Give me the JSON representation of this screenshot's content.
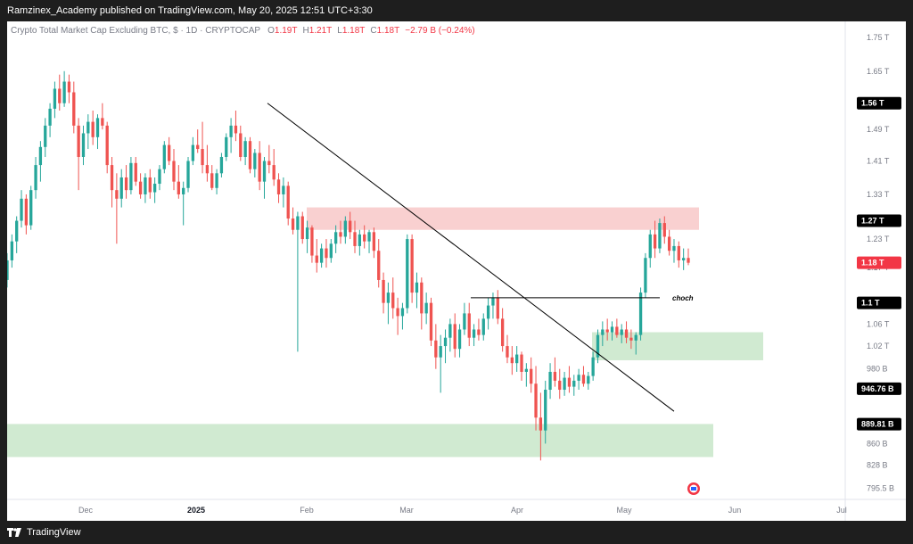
{
  "header": {
    "attribution": "Ramzinex_Academy published on TradingView.com, May 20, 2025 12:51 UTC+3:30"
  },
  "footer": {
    "brand": "TradingView"
  },
  "legend": {
    "symbol": "Crypto Total Market Cap Excluding BTC, $ · 1D · CRYPTOCAP",
    "open_label": "O",
    "open": "1.19T",
    "high_label": "H",
    "high": "1.21T",
    "low_label": "L",
    "low": "1.18T",
    "close_label": "C",
    "close": "1.18T",
    "change": "−2.79 B (−0.24%)"
  },
  "annotations": {
    "choch": "choch"
  },
  "colors": {
    "up": "#26a69a",
    "down": "#ef5350",
    "resistance_zone": "#f8c8c8",
    "support_zone": "#c8e6c9",
    "trendline": "#000000",
    "axis_text": "#787b86",
    "badge_dark": "#000000",
    "badge_red": "#f23645"
  },
  "chart_data": {
    "type": "candlestick",
    "title": "Crypto Total Market Cap Excluding BTC, $ · 1D · CRYPTOCAP",
    "x_ticks": [
      "Dec",
      "2025",
      "Feb",
      "Mar",
      "Apr",
      "May",
      "Jun",
      "Jul"
    ],
    "x_tick_dates": [
      "2024-12-01",
      "2025-01-01",
      "2025-02-01",
      "2025-03-01",
      "2025-04-01",
      "2025-05-01",
      "2025-06-01",
      "2025-07-01"
    ],
    "y_ticks": [
      "1.75 T",
      "1.65 T",
      "1.49 T",
      "1.41 T",
      "1.33 T",
      "1.23 T",
      "1.17 T",
      "1.06 T",
      "1.02 T",
      "980 B",
      "860 B",
      "828 B",
      "795.5 B"
    ],
    "y_tick_values": [
      1750,
      1650,
      1490,
      1410,
      1330,
      1230,
      1170,
      1060,
      1020,
      980,
      860,
      828,
      795.5
    ],
    "y_unit": "B",
    "y_scale": "log",
    "ylim": [
      780,
      1800
    ],
    "price_badges": [
      {
        "label": "1.56 T",
        "value": 1560,
        "style": "dark"
      },
      {
        "label": "1.27 T",
        "value": 1270,
        "style": "dark"
      },
      {
        "label": "1.18 T",
        "value": 1180,
        "style": "red"
      },
      {
        "label": "1.1 T",
        "value": 1100,
        "style": "dark"
      },
      {
        "label": "946.76 B",
        "value": 946.76,
        "style": "dark"
      },
      {
        "label": "889.81 B",
        "value": 889.81,
        "style": "dark"
      }
    ],
    "zones": [
      {
        "kind": "resistance",
        "from": "2025-02-01",
        "to": "2025-05-22",
        "low": 1250,
        "high": 1300
      },
      {
        "kind": "support",
        "from": "2025-04-22",
        "to": "2025-06-09",
        "low": 995,
        "high": 1045
      },
      {
        "kind": "support",
        "from": "2024-11-09",
        "to": "2025-05-26",
        "low": 840,
        "high": 890
      }
    ],
    "trendline": {
      "from_date": "2025-01-21",
      "from_value": 1560,
      "to_date": "2025-05-15",
      "to_value": 910
    },
    "choch_line": {
      "from_date": "2025-03-19",
      "to_date": "2025-05-11",
      "value": 1110,
      "label": "choch"
    },
    "candles": [
      {
        "o": 1145,
        "h": 1200,
        "l": 1130,
        "c": 1185
      },
      {
        "o": 1185,
        "h": 1240,
        "l": 1170,
        "c": 1225
      },
      {
        "o": 1225,
        "h": 1280,
        "l": 1200,
        "c": 1270
      },
      {
        "o": 1270,
        "h": 1340,
        "l": 1255,
        "c": 1320
      },
      {
        "o": 1320,
        "h": 1330,
        "l": 1240,
        "c": 1260
      },
      {
        "o": 1260,
        "h": 1350,
        "l": 1250,
        "c": 1340
      },
      {
        "o": 1340,
        "h": 1420,
        "l": 1320,
        "c": 1400
      },
      {
        "o": 1400,
        "h": 1460,
        "l": 1360,
        "c": 1445
      },
      {
        "o": 1445,
        "h": 1520,
        "l": 1420,
        "c": 1500
      },
      {
        "o": 1500,
        "h": 1560,
        "l": 1470,
        "c": 1545
      },
      {
        "o": 1545,
        "h": 1620,
        "l": 1520,
        "c": 1600
      },
      {
        "o": 1600,
        "h": 1640,
        "l": 1540,
        "c": 1560
      },
      {
        "o": 1560,
        "h": 1650,
        "l": 1550,
        "c": 1620
      },
      {
        "o": 1620,
        "h": 1640,
        "l": 1560,
        "c": 1590
      },
      {
        "o": 1590,
        "h": 1620,
        "l": 1480,
        "c": 1500
      },
      {
        "o": 1500,
        "h": 1520,
        "l": 1340,
        "c": 1420
      },
      {
        "o": 1420,
        "h": 1500,
        "l": 1400,
        "c": 1480
      },
      {
        "o": 1480,
        "h": 1530,
        "l": 1440,
        "c": 1510
      },
      {
        "o": 1510,
        "h": 1540,
        "l": 1450,
        "c": 1470
      },
      {
        "o": 1470,
        "h": 1530,
        "l": 1440,
        "c": 1520
      },
      {
        "o": 1520,
        "h": 1560,
        "l": 1490,
        "c": 1500
      },
      {
        "o": 1500,
        "h": 1510,
        "l": 1380,
        "c": 1400
      },
      {
        "o": 1400,
        "h": 1420,
        "l": 1300,
        "c": 1340
      },
      {
        "o": 1340,
        "h": 1380,
        "l": 1220,
        "c": 1320
      },
      {
        "o": 1320,
        "h": 1390,
        "l": 1300,
        "c": 1370
      },
      {
        "o": 1370,
        "h": 1400,
        "l": 1320,
        "c": 1340
      },
      {
        "o": 1340,
        "h": 1420,
        "l": 1330,
        "c": 1405
      },
      {
        "o": 1405,
        "h": 1420,
        "l": 1350,
        "c": 1360
      },
      {
        "o": 1360,
        "h": 1380,
        "l": 1320,
        "c": 1330
      },
      {
        "o": 1330,
        "h": 1380,
        "l": 1310,
        "c": 1370
      },
      {
        "o": 1370,
        "h": 1390,
        "l": 1320,
        "c": 1335
      },
      {
        "o": 1335,
        "h": 1370,
        "l": 1310,
        "c": 1355
      },
      {
        "o": 1355,
        "h": 1400,
        "l": 1340,
        "c": 1390
      },
      {
        "o": 1390,
        "h": 1460,
        "l": 1380,
        "c": 1450
      },
      {
        "o": 1450,
        "h": 1470,
        "l": 1400,
        "c": 1410
      },
      {
        "o": 1410,
        "h": 1440,
        "l": 1340,
        "c": 1360
      },
      {
        "o": 1360,
        "h": 1400,
        "l": 1320,
        "c": 1330
      },
      {
        "o": 1330,
        "h": 1360,
        "l": 1260,
        "c": 1345
      },
      {
        "o": 1345,
        "h": 1420,
        "l": 1335,
        "c": 1410
      },
      {
        "o": 1410,
        "h": 1470,
        "l": 1400,
        "c": 1450
      },
      {
        "o": 1450,
        "h": 1490,
        "l": 1430,
        "c": 1440
      },
      {
        "o": 1440,
        "h": 1510,
        "l": 1380,
        "c": 1400
      },
      {
        "o": 1400,
        "h": 1450,
        "l": 1360,
        "c": 1380
      },
      {
        "o": 1380,
        "h": 1400,
        "l": 1340,
        "c": 1345
      },
      {
        "o": 1345,
        "h": 1390,
        "l": 1330,
        "c": 1380
      },
      {
        "o": 1380,
        "h": 1430,
        "l": 1370,
        "c": 1420
      },
      {
        "o": 1420,
        "h": 1480,
        "l": 1410,
        "c": 1470
      },
      {
        "o": 1470,
        "h": 1520,
        "l": 1430,
        "c": 1500
      },
      {
        "o": 1500,
        "h": 1540,
        "l": 1460,
        "c": 1480
      },
      {
        "o": 1480,
        "h": 1500,
        "l": 1410,
        "c": 1420
      },
      {
        "o": 1420,
        "h": 1470,
        "l": 1400,
        "c": 1460
      },
      {
        "o": 1460,
        "h": 1470,
        "l": 1380,
        "c": 1390
      },
      {
        "o": 1390,
        "h": 1440,
        "l": 1370,
        "c": 1430
      },
      {
        "o": 1430,
        "h": 1460,
        "l": 1340,
        "c": 1360
      },
      {
        "o": 1360,
        "h": 1420,
        "l": 1320,
        "c": 1410
      },
      {
        "o": 1410,
        "h": 1450,
        "l": 1380,
        "c": 1400
      },
      {
        "o": 1400,
        "h": 1440,
        "l": 1350,
        "c": 1365
      },
      {
        "o": 1365,
        "h": 1380,
        "l": 1310,
        "c": 1330
      },
      {
        "o": 1330,
        "h": 1370,
        "l": 1300,
        "c": 1350
      },
      {
        "o": 1350,
        "h": 1360,
        "l": 1260,
        "c": 1275
      },
      {
        "o": 1275,
        "h": 1300,
        "l": 1240,
        "c": 1250
      },
      {
        "o": 1250,
        "h": 1290,
        "l": 1010,
        "c": 1280
      },
      {
        "o": 1280,
        "h": 1290,
        "l": 1220,
        "c": 1230
      },
      {
        "o": 1230,
        "h": 1270,
        "l": 1200,
        "c": 1255
      },
      {
        "o": 1255,
        "h": 1260,
        "l": 1180,
        "c": 1195
      },
      {
        "o": 1195,
        "h": 1230,
        "l": 1160,
        "c": 1180
      },
      {
        "o": 1180,
        "h": 1220,
        "l": 1170,
        "c": 1210
      },
      {
        "o": 1210,
        "h": 1230,
        "l": 1170,
        "c": 1190
      },
      {
        "o": 1190,
        "h": 1230,
        "l": 1180,
        "c": 1220
      },
      {
        "o": 1220,
        "h": 1260,
        "l": 1200,
        "c": 1245
      },
      {
        "o": 1245,
        "h": 1270,
        "l": 1220,
        "c": 1235
      },
      {
        "o": 1235,
        "h": 1280,
        "l": 1220,
        "c": 1270
      },
      {
        "o": 1270,
        "h": 1290,
        "l": 1230,
        "c": 1245
      },
      {
        "o": 1245,
        "h": 1270,
        "l": 1200,
        "c": 1215
      },
      {
        "o": 1215,
        "h": 1250,
        "l": 1195,
        "c": 1240
      },
      {
        "o": 1240,
        "h": 1260,
        "l": 1210,
        "c": 1225
      },
      {
        "o": 1225,
        "h": 1250,
        "l": 1200,
        "c": 1245
      },
      {
        "o": 1245,
        "h": 1255,
        "l": 1190,
        "c": 1205
      },
      {
        "o": 1205,
        "h": 1230,
        "l": 1130,
        "c": 1145
      },
      {
        "o": 1145,
        "h": 1160,
        "l": 1080,
        "c": 1100
      },
      {
        "o": 1100,
        "h": 1140,
        "l": 1060,
        "c": 1120
      },
      {
        "o": 1120,
        "h": 1150,
        "l": 1070,
        "c": 1090
      },
      {
        "o": 1090,
        "h": 1110,
        "l": 1040,
        "c": 1075
      },
      {
        "o": 1075,
        "h": 1100,
        "l": 1050,
        "c": 1090
      },
      {
        "o": 1090,
        "h": 1240,
        "l": 1080,
        "c": 1230
      },
      {
        "o": 1230,
        "h": 1240,
        "l": 1100,
        "c": 1120
      },
      {
        "o": 1120,
        "h": 1160,
        "l": 1090,
        "c": 1140
      },
      {
        "o": 1140,
        "h": 1150,
        "l": 1050,
        "c": 1080
      },
      {
        "o": 1080,
        "h": 1120,
        "l": 1060,
        "c": 1100
      },
      {
        "o": 1100,
        "h": 1110,
        "l": 1020,
        "c": 1030
      },
      {
        "o": 1030,
        "h": 1060,
        "l": 980,
        "c": 1000
      },
      {
        "o": 1000,
        "h": 1040,
        "l": 940,
        "c": 1020
      },
      {
        "o": 1020,
        "h": 1050,
        "l": 990,
        "c": 1035
      },
      {
        "o": 1035,
        "h": 1070,
        "l": 1010,
        "c": 1060
      },
      {
        "o": 1060,
        "h": 1080,
        "l": 1000,
        "c": 1015
      },
      {
        "o": 1015,
        "h": 1060,
        "l": 1000,
        "c": 1050
      },
      {
        "o": 1050,
        "h": 1100,
        "l": 1040,
        "c": 1080
      },
      {
        "o": 1080,
        "h": 1100,
        "l": 1020,
        "c": 1035
      },
      {
        "o": 1035,
        "h": 1060,
        "l": 1020,
        "c": 1050
      },
      {
        "o": 1050,
        "h": 1070,
        "l": 1030,
        "c": 1040
      },
      {
        "o": 1040,
        "h": 1080,
        "l": 1030,
        "c": 1070
      },
      {
        "o": 1070,
        "h": 1110,
        "l": 1050,
        "c": 1095
      },
      {
        "o": 1095,
        "h": 1120,
        "l": 1070,
        "c": 1110
      },
      {
        "o": 1110,
        "h": 1125,
        "l": 1060,
        "c": 1070
      },
      {
        "o": 1070,
        "h": 1090,
        "l": 1010,
        "c": 1020
      },
      {
        "o": 1020,
        "h": 1040,
        "l": 990,
        "c": 1000
      },
      {
        "o": 1000,
        "h": 1020,
        "l": 970,
        "c": 990
      },
      {
        "o": 990,
        "h": 1020,
        "l": 975,
        "c": 1005
      },
      {
        "o": 1005,
        "h": 1010,
        "l": 960,
        "c": 975
      },
      {
        "o": 975,
        "h": 990,
        "l": 950,
        "c": 980
      },
      {
        "o": 980,
        "h": 1000,
        "l": 940,
        "c": 955
      },
      {
        "o": 955,
        "h": 985,
        "l": 880,
        "c": 900
      },
      {
        "o": 900,
        "h": 940,
        "l": 835,
        "c": 880
      },
      {
        "o": 880,
        "h": 960,
        "l": 860,
        "c": 945
      },
      {
        "o": 945,
        "h": 990,
        "l": 930,
        "c": 975
      },
      {
        "o": 975,
        "h": 1000,
        "l": 950,
        "c": 960
      },
      {
        "o": 960,
        "h": 980,
        "l": 930,
        "c": 945
      },
      {
        "o": 945,
        "h": 975,
        "l": 935,
        "c": 965
      },
      {
        "o": 965,
        "h": 985,
        "l": 940,
        "c": 950
      },
      {
        "o": 950,
        "h": 970,
        "l": 935,
        "c": 960
      },
      {
        "o": 960,
        "h": 980,
        "l": 945,
        "c": 970
      },
      {
        "o": 970,
        "h": 985,
        "l": 950,
        "c": 955
      },
      {
        "o": 955,
        "h": 975,
        "l": 945,
        "c": 968
      },
      {
        "o": 968,
        "h": 1010,
        "l": 960,
        "c": 1000
      },
      {
        "o": 1000,
        "h": 1050,
        "l": 990,
        "c": 1040
      },
      {
        "o": 1040,
        "h": 1065,
        "l": 1020,
        "c": 1050
      },
      {
        "o": 1050,
        "h": 1070,
        "l": 1030,
        "c": 1045
      },
      {
        "o": 1045,
        "h": 1065,
        "l": 1030,
        "c": 1055
      },
      {
        "o": 1055,
        "h": 1070,
        "l": 1035,
        "c": 1040
      },
      {
        "o": 1040,
        "h": 1060,
        "l": 1025,
        "c": 1050
      },
      {
        "o": 1050,
        "h": 1065,
        "l": 1025,
        "c": 1035
      },
      {
        "o": 1035,
        "h": 1050,
        "l": 1015,
        "c": 1030
      },
      {
        "o": 1030,
        "h": 1045,
        "l": 1005,
        "c": 1040
      },
      {
        "o": 1040,
        "h": 1130,
        "l": 1030,
        "c": 1120
      },
      {
        "o": 1120,
        "h": 1200,
        "l": 1110,
        "c": 1190
      },
      {
        "o": 1190,
        "h": 1250,
        "l": 1170,
        "c": 1240
      },
      {
        "o": 1240,
        "h": 1270,
        "l": 1190,
        "c": 1210
      },
      {
        "o": 1210,
        "h": 1275,
        "l": 1200,
        "c": 1265
      },
      {
        "o": 1265,
        "h": 1280,
        "l": 1220,
        "c": 1235
      },
      {
        "o": 1235,
        "h": 1250,
        "l": 1195,
        "c": 1205
      },
      {
        "o": 1205,
        "h": 1230,
        "l": 1180,
        "c": 1215
      },
      {
        "o": 1215,
        "h": 1225,
        "l": 1170,
        "c": 1185
      },
      {
        "o": 1185,
        "h": 1210,
        "l": 1165,
        "c": 1190
      },
      {
        "o": 1190,
        "h": 1210,
        "l": 1175,
        "c": 1180
      }
    ]
  }
}
